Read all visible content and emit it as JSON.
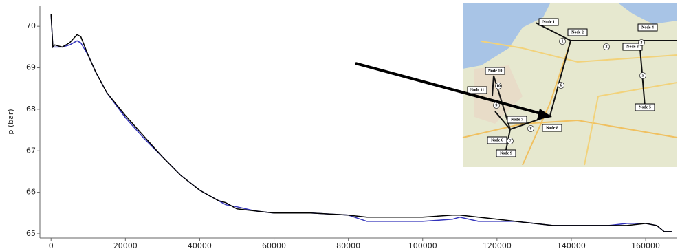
{
  "chart_data": {
    "type": "line",
    "y_label": "p (bar)",
    "x": [
      0,
      500,
      1000,
      3000,
      5000,
      7000,
      8000,
      10000,
      12000,
      15000,
      20000,
      25000,
      30000,
      35000,
      40000,
      45000,
      47000,
      50000,
      55000,
      60000,
      70000,
      80000,
      85000,
      90000,
      100000,
      108000,
      110000,
      115000,
      120000,
      125000,
      130000,
      135000,
      140000,
      150000,
      155000,
      160000,
      163000,
      165000,
      167000
    ],
    "series": [
      {
        "color": "#000000",
        "values": [
          70.3,
          69.5,
          69.55,
          69.5,
          69.6,
          69.8,
          69.75,
          69.3,
          68.9,
          68.4,
          67.85,
          67.35,
          66.85,
          66.4,
          66.05,
          65.8,
          65.75,
          65.6,
          65.55,
          65.5,
          65.5,
          65.45,
          65.4,
          65.4,
          65.4,
          65.45,
          65.45,
          65.4,
          65.35,
          65.3,
          65.25,
          65.2,
          65.2,
          65.2,
          65.2,
          65.25,
          65.2,
          65.05,
          65.05
        ]
      },
      {
        "color": "#3333bb",
        "values": [
          70.3,
          69.5,
          69.5,
          69.5,
          69.55,
          69.65,
          69.6,
          69.3,
          68.9,
          68.4,
          67.8,
          67.3,
          66.85,
          66.4,
          66.05,
          65.8,
          65.7,
          65.65,
          65.55,
          65.5,
          65.5,
          65.45,
          65.3,
          65.3,
          65.3,
          65.35,
          65.4,
          65.3,
          65.3,
          65.3,
          65.25,
          65.2,
          65.2,
          65.2,
          65.25,
          65.25,
          65.2,
          65.05,
          65.05
        ]
      }
    ],
    "xlim": [
      -3000,
      168500
    ],
    "ylim": [
      64.9,
      70.5
    ],
    "xticks": [
      0,
      20000,
      40000,
      60000,
      80000,
      100000,
      120000,
      140000,
      160000
    ],
    "yticks": [
      65,
      66,
      67,
      68,
      69,
      70
    ],
    "grid": false,
    "map_labels": [
      "Node 1",
      "Node 2",
      "Node 3",
      "Node 4",
      "Node 5",
      "Node 6",
      "Node 7",
      "Node 8",
      "Node 9",
      "Node 10",
      "Node 11"
    ],
    "map_edge_labels": [
      "1",
      "2",
      "3",
      "5",
      "6",
      "7",
      "8",
      "9",
      "10"
    ]
  }
}
